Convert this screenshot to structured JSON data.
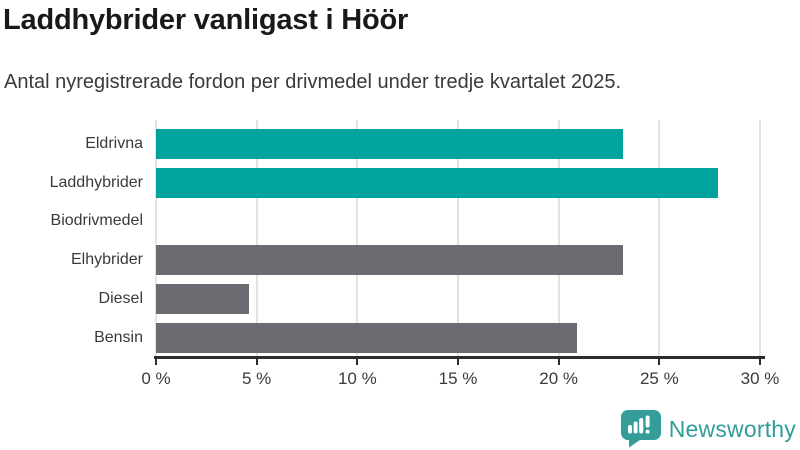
{
  "chart_data": {
    "type": "bar",
    "orientation": "horizontal",
    "title": "Laddhybrider vanligast i Höör",
    "subtitle": "Antal nyregistrerade fordon per drivmedel under tredje kvartalet 2025.",
    "categories": [
      "Eldrivna",
      "Laddhybrider",
      "Biodrivmedel",
      "Elhybrider",
      "Diesel",
      "Bensin"
    ],
    "values": [
      23.2,
      27.9,
      0,
      23.2,
      4.6,
      20.9
    ],
    "value_unit": "%",
    "bar_colors": [
      "#00a49c",
      "#00a49c",
      "#6c6b71",
      "#6c6b71",
      "#6c6b71",
      "#6c6b71"
    ],
    "highlight_color": "#00a49c",
    "default_color": "#6c6b71",
    "xlim": [
      0,
      30
    ],
    "xtick_values": [
      0,
      5,
      10,
      15,
      20,
      25,
      30
    ],
    "xtick_labels": [
      "0 %",
      "5 %",
      "10 %",
      "15 %",
      "20 %",
      "25 %",
      "30 %"
    ],
    "xlabel": "",
    "ylabel": "",
    "grid": true,
    "legend": false
  },
  "brand": {
    "name": "Newsworthy",
    "icon": "bar-chart-speech-bubble-icon",
    "color": "#2f9d99",
    "icon_color": "#359d99"
  },
  "style_colors": {
    "background": "#ffffff",
    "title_text": "#191919",
    "body_text": "#3a3a3a",
    "axis": "#2d2d2d",
    "gridline": "#e3e3e3"
  }
}
